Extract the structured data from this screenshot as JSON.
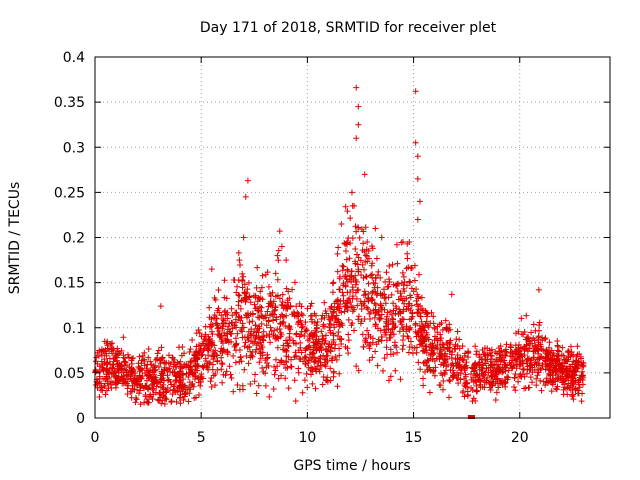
{
  "chart_data": {
    "type": "scatter",
    "title": "Day 171 of 2018, SRMTID for receiver plet",
    "xlabel": "GPS time / hours",
    "ylabel": "SRMTID / TECUs",
    "xlim": [
      0,
      24.25
    ],
    "ylim": [
      0,
      0.4
    ],
    "xticks": [
      0,
      5,
      10,
      15,
      20
    ],
    "xtick_labels": [
      "0",
      "5",
      "10",
      "15",
      "20"
    ],
    "yticks": [
      0,
      0.05,
      0.1,
      0.15,
      0.2,
      0.25,
      0.3,
      0.35,
      0.4
    ],
    "ytick_labels": [
      "0",
      "0.05",
      "0.1",
      "0.15",
      "0.2",
      "0.25",
      "0.3",
      "0.35",
      "0.4"
    ],
    "grid": true,
    "marker": "+",
    "marker_color": "#e00000",
    "profile": {
      "x": [
        0,
        0.5,
        1,
        1.5,
        2,
        2.5,
        3,
        3.5,
        4,
        4.5,
        5,
        5.5,
        6,
        6.5,
        7,
        7.5,
        8,
        8.5,
        9,
        9.5,
        10,
        10.5,
        11,
        11.5,
        12,
        12.5,
        13,
        13.5,
        14,
        14.5,
        15,
        15.5,
        16,
        16.5,
        17,
        17.5,
        18,
        18.5,
        19,
        19.5,
        20,
        20.5,
        21,
        21.5,
        22,
        22.5,
        23
      ],
      "median": [
        0.05,
        0.055,
        0.055,
        0.05,
        0.045,
        0.042,
        0.045,
        0.045,
        0.042,
        0.05,
        0.062,
        0.085,
        0.09,
        0.1,
        0.105,
        0.095,
        0.1,
        0.11,
        0.1,
        0.085,
        0.08,
        0.08,
        0.085,
        0.11,
        0.17,
        0.15,
        0.13,
        0.115,
        0.115,
        0.12,
        0.125,
        0.085,
        0.075,
        0.07,
        0.06,
        0.05,
        0.05,
        0.055,
        0.055,
        0.06,
        0.07,
        0.07,
        0.07,
        0.06,
        0.05,
        0.048,
        0.05
      ],
      "spread": [
        0.02,
        0.02,
        0.02,
        0.02,
        0.018,
        0.02,
        0.025,
        0.02,
        0.02,
        0.022,
        0.025,
        0.03,
        0.035,
        0.04,
        0.05,
        0.04,
        0.045,
        0.05,
        0.045,
        0.035,
        0.03,
        0.03,
        0.035,
        0.05,
        0.06,
        0.055,
        0.04,
        0.04,
        0.045,
        0.045,
        0.05,
        0.03,
        0.025,
        0.025,
        0.02,
        0.02,
        0.018,
        0.02,
        0.02,
        0.02,
        0.025,
        0.025,
        0.025,
        0.02,
        0.018,
        0.018,
        0.018
      ]
    },
    "n_points": 2600,
    "peaks": [
      {
        "x": 7.2,
        "y": 0.263
      },
      {
        "x": 7.1,
        "y": 0.245
      },
      {
        "x": 8.7,
        "y": 0.207
      },
      {
        "x": 12.3,
        "y": 0.366
      },
      {
        "x": 12.4,
        "y": 0.345
      },
      {
        "x": 12.4,
        "y": 0.325
      },
      {
        "x": 12.3,
        "y": 0.31
      },
      {
        "x": 12.7,
        "y": 0.27
      },
      {
        "x": 12.1,
        "y": 0.25
      },
      {
        "x": 15.1,
        "y": 0.362
      },
      {
        "x": 15.1,
        "y": 0.305
      },
      {
        "x": 15.2,
        "y": 0.29
      },
      {
        "x": 15.2,
        "y": 0.265
      },
      {
        "x": 15.3,
        "y": 0.24
      },
      {
        "x": 15.2,
        "y": 0.22
      },
      {
        "x": 11.6,
        "y": 0.215
      },
      {
        "x": 5.5,
        "y": 0.165
      },
      {
        "x": 3.1,
        "y": 0.124
      },
      {
        "x": 20.9,
        "y": 0.142
      },
      {
        "x": 16.8,
        "y": 0.137
      },
      {
        "x": 14.8,
        "y": 0.195
      },
      {
        "x": 14.5,
        "y": 0.195
      },
      {
        "x": 13.5,
        "y": 0.2
      },
      {
        "x": 13.2,
        "y": 0.21
      },
      {
        "x": 12.2,
        "y": 0.235
      },
      {
        "x": 8.8,
        "y": 0.19
      },
      {
        "x": 9.0,
        "y": 0.175
      },
      {
        "x": 6.8,
        "y": 0.175
      },
      {
        "x": 7.0,
        "y": 0.2
      }
    ],
    "outliers_low": [
      {
        "x": 17.7,
        "y": 0.0
      },
      {
        "x": 17.75,
        "y": 0.0
      }
    ]
  }
}
